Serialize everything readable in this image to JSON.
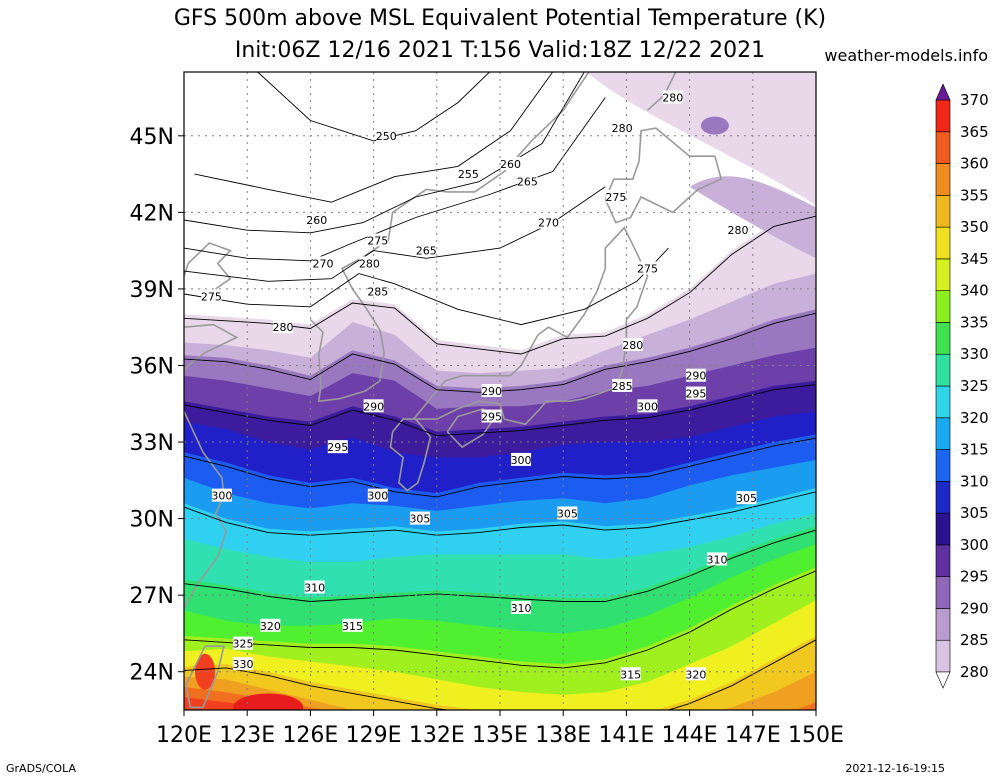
{
  "title": {
    "line1": "GFS 500m above MSL Equivalent Potential Temperature (K)",
    "line2": "Init:06Z 12/16 2021 T:156 Valid:18Z 12/22 2021"
  },
  "source": "weather-models.info",
  "footer": {
    "left": "GrADS/COLA",
    "right": "2021-12-16-19:15"
  },
  "map": {
    "lon_range": [
      120,
      150
    ],
    "lat_range": [
      22.5,
      47.5
    ],
    "lon_ticks": [
      "120E",
      "123E",
      "126E",
      "129E",
      "132E",
      "135E",
      "138E",
      "141E",
      "144E",
      "147E",
      "150E"
    ],
    "lat_ticks": [
      "24N",
      "27N",
      "30N",
      "33N",
      "36N",
      "39N",
      "42N",
      "45N"
    ]
  },
  "colorbar": {
    "levels": [
      "280",
      "285",
      "290",
      "295",
      "300",
      "305",
      "310",
      "315",
      "320",
      "325",
      "330",
      "335",
      "340",
      "345",
      "350",
      "355",
      "360",
      "365",
      "370"
    ],
    "colors": [
      "#e8d8ea",
      "#c8b0d8",
      "#9a78c0",
      "#6c40a8",
      "#3c1c9c",
      "#2020c8",
      "#1c5cf0",
      "#1a9cf0",
      "#30d0f0",
      "#30e0b0",
      "#30e070",
      "#50f030",
      "#a0f020",
      "#f0f020",
      "#f0c820",
      "#f0a020",
      "#f07020",
      "#f04020",
      "#e81c1c",
      "#c01818",
      "#a02060",
      "#e020a0",
      "#f040f0",
      "#b020d0",
      "#6a1a98"
    ]
  },
  "contour_labels": [
    {
      "text": "250",
      "lon": 129.6,
      "lat": 45.0
    },
    {
      "text": "255",
      "lon": 133.5,
      "lat": 43.5
    },
    {
      "text": "260",
      "lon": 126.3,
      "lat": 41.7
    },
    {
      "text": "260",
      "lon": 135.5,
      "lat": 43.9
    },
    {
      "text": "265",
      "lon": 131.5,
      "lat": 40.5
    },
    {
      "text": "265",
      "lon": 136.3,
      "lat": 43.2
    },
    {
      "text": "270",
      "lon": 126.6,
      "lat": 40.0
    },
    {
      "text": "270",
      "lon": 137.3,
      "lat": 41.6
    },
    {
      "text": "275",
      "lon": 129.2,
      "lat": 40.9
    },
    {
      "text": "275",
      "lon": 140.5,
      "lat": 42.6
    },
    {
      "text": "275",
      "lon": 142.0,
      "lat": 39.8
    },
    {
      "text": "275",
      "lon": 121.3,
      "lat": 38.7
    },
    {
      "text": "280",
      "lon": 128.8,
      "lat": 40.0
    },
    {
      "text": "280",
      "lon": 124.7,
      "lat": 37.5
    },
    {
      "text": "280",
      "lon": 143.2,
      "lat": 46.5
    },
    {
      "text": "280",
      "lon": 140.8,
      "lat": 45.3
    },
    {
      "text": "280",
      "lon": 146.3,
      "lat": 41.3
    },
    {
      "text": "280",
      "lon": 141.3,
      "lat": 36.8
    },
    {
      "text": "285",
      "lon": 129.2,
      "lat": 38.9
    },
    {
      "text": "285",
      "lon": 140.8,
      "lat": 35.2
    },
    {
      "text": "290",
      "lon": 129.0,
      "lat": 34.4
    },
    {
      "text": "290",
      "lon": 134.6,
      "lat": 35.0
    },
    {
      "text": "290",
      "lon": 144.3,
      "lat": 35.6
    },
    {
      "text": "295",
      "lon": 127.3,
      "lat": 32.8
    },
    {
      "text": "295",
      "lon": 134.6,
      "lat": 34.0
    },
    {
      "text": "295",
      "lon": 144.3,
      "lat": 34.9
    },
    {
      "text": "300",
      "lon": 121.8,
      "lat": 30.9
    },
    {
      "text": "300",
      "lon": 129.2,
      "lat": 30.9
    },
    {
      "text": "300",
      "lon": 136.0,
      "lat": 32.3
    },
    {
      "text": "300",
      "lon": 142.0,
      "lat": 34.4
    },
    {
      "text": "305",
      "lon": 131.2,
      "lat": 30.0
    },
    {
      "text": "305",
      "lon": 138.2,
      "lat": 30.2
    },
    {
      "text": "305",
      "lon": 146.7,
      "lat": 30.8
    },
    {
      "text": "310",
      "lon": 145.3,
      "lat": 28.4
    },
    {
      "text": "310",
      "lon": 126.2,
      "lat": 27.3
    },
    {
      "text": "310",
      "lon": 136.0,
      "lat": 26.5
    },
    {
      "text": "315",
      "lon": 128.0,
      "lat": 25.8
    },
    {
      "text": "315",
      "lon": 141.2,
      "lat": 23.9
    },
    {
      "text": "320",
      "lon": 124.1,
      "lat": 25.8
    },
    {
      "text": "320",
      "lon": 144.3,
      "lat": 23.9
    },
    {
      "text": "325",
      "lon": 122.8,
      "lat": 25.1
    },
    {
      "text": "330",
      "lon": 122.8,
      "lat": 24.3
    }
  ]
}
